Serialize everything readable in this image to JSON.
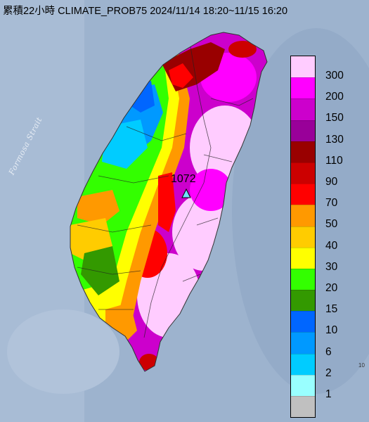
{
  "title": "累積22小時 CLIMATE_PROB75 2024/11/14 18:20~11/15 16:20",
  "sea_label": "Formosa Strait",
  "max_marker": {
    "value": "1072",
    "icon": "triangle-marker-icon"
  },
  "legend": {
    "labels": [
      "300",
      "200",
      "150",
      "130",
      "110",
      "90",
      "70",
      "50",
      "40",
      "30",
      "20",
      "15",
      "10",
      "6",
      "2",
      "1"
    ],
    "colors": [
      "#ffccff",
      "#ff00ff",
      "#cc00cc",
      "#990099",
      "#990000",
      "#cc0000",
      "#ff0000",
      "#ff9900",
      "#ffcc00",
      "#ffff00",
      "#33ff00",
      "#339900",
      "#0066ff",
      "#0099ff",
      "#00ccff",
      "#99ffff",
      "#c0c0c0"
    ]
  },
  "edge_note": "10"
}
